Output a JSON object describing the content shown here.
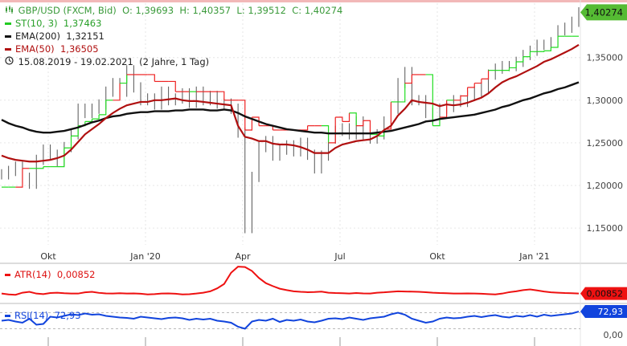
{
  "header": {
    "instrument": "GBP/USD (FXCM, Bid)",
    "ohlc": {
      "o_label": "O:",
      "o": "1,39693",
      "h_label": "H:",
      "h": "1,40357",
      "l_label": "L:",
      "l": "1,39512",
      "c_label": "C:",
      "c": "1,40274"
    },
    "range": "15.08.2019 - 19.02.2021",
    "range_note": "(2 Jahre, 1 Tag)"
  },
  "legend": [
    {
      "label": "ST(10, 3)",
      "value": "1,37463",
      "color": "#22cc22"
    },
    {
      "label": "EMA(200)",
      "value": "1,32151",
      "color": "#111111"
    },
    {
      "label": "EMA(50)",
      "value": "1,36505",
      "color": "#b01010"
    }
  ],
  "colors": {
    "price": "#555555",
    "st_up": "#22dd22",
    "st_down": "#ee2222",
    "ema200": "#111111",
    "ema50": "#b01010",
    "atr": "#ee1111",
    "rsi": "#1144dd",
    "last_badge": "#55bb33"
  },
  "icons": {
    "chart": "candlestick-icon",
    "clock": "clock-icon"
  },
  "chart_data": [
    {
      "type": "line",
      "title": "GBP/USD (FXCM, Bid)",
      "x_tick_labels": [
        "Okt",
        "Jan '20",
        "Apr",
        "Jul",
        "Okt",
        "Jan '21"
      ],
      "y_tick_labels": [
        "1,35000",
        "1,30000",
        "1,25000",
        "1,20000",
        "1,15000"
      ],
      "ylim": [
        1.135,
        1.41
      ],
      "last_value": "1,40274",
      "series": [
        {
          "name": "GBP/USD",
          "values": [
            1.213,
            1.217,
            1.222,
            1.209,
            1.202,
            1.23,
            1.242,
            1.236,
            1.228,
            1.245,
            1.26,
            1.29,
            1.285,
            1.29,
            1.295,
            1.31,
            1.32,
            1.31,
            1.335,
            1.315,
            1.3,
            1.302,
            1.295,
            1.31,
            1.3,
            1.302,
            1.308,
            1.297,
            1.31,
            1.3,
            1.305,
            1.296,
            1.296,
            1.29,
            1.262,
            1.15,
            1.21,
            1.245,
            1.252,
            1.235,
            1.242,
            1.247,
            1.24,
            1.25,
            1.236,
            1.22,
            1.235,
            1.255,
            1.264,
            1.267,
            1.26,
            1.275,
            1.26,
            1.255,
            1.26,
            1.275,
            1.29,
            1.32,
            1.333,
            1.3,
            1.3,
            1.285,
            1.278,
            1.29,
            1.292,
            1.3,
            1.298,
            1.305,
            1.31,
            1.315,
            1.33,
            1.337,
            1.34,
            1.34,
            1.345,
            1.353,
            1.358,
            1.365,
            1.365,
            1.368,
            1.382,
            1.385,
            1.392,
            1.403
          ]
        },
        {
          "name": "ST(10, 3)",
          "values": [
            1.198,
            1.198,
            1.198,
            1.22,
            1.22,
            1.22,
            1.222,
            1.222,
            1.222,
            1.244,
            1.258,
            1.27,
            1.275,
            1.278,
            1.283,
            1.3,
            1.3,
            1.32,
            1.33,
            1.33,
            1.33,
            1.33,
            1.322,
            1.322,
            1.322,
            1.31,
            1.31,
            1.31,
            1.31,
            1.31,
            1.31,
            1.31,
            1.3,
            1.3,
            1.3,
            1.265,
            1.28,
            1.27,
            1.27,
            1.265,
            1.265,
            1.265,
            1.265,
            1.265,
            1.27,
            1.27,
            1.27,
            1.25,
            1.28,
            1.275,
            1.285,
            1.27,
            1.276,
            1.26,
            1.258,
            1.266,
            1.298,
            1.298,
            1.32,
            1.33,
            1.33,
            1.33,
            1.27,
            1.28,
            1.3,
            1.3,
            1.305,
            1.315,
            1.32,
            1.325,
            1.335,
            1.335,
            1.335,
            1.338,
            1.345,
            1.351,
            1.357,
            1.357,
            1.358,
            1.362,
            1.375,
            1.375,
            1.375,
            1.375
          ]
        },
        {
          "name": "EMA(200)",
          "values": [
            1.277,
            1.273,
            1.27,
            1.268,
            1.265,
            1.263,
            1.262,
            1.262,
            1.263,
            1.264,
            1.266,
            1.268,
            1.271,
            1.274,
            1.276,
            1.279,
            1.281,
            1.282,
            1.284,
            1.285,
            1.286,
            1.286,
            1.287,
            1.287,
            1.287,
            1.288,
            1.288,
            1.289,
            1.289,
            1.289,
            1.288,
            1.288,
            1.289,
            1.288,
            1.285,
            1.281,
            1.278,
            1.275,
            1.272,
            1.27,
            1.268,
            1.266,
            1.265,
            1.264,
            1.263,
            1.262,
            1.262,
            1.261,
            1.261,
            1.261,
            1.261,
            1.261,
            1.261,
            1.261,
            1.262,
            1.263,
            1.264,
            1.266,
            1.268,
            1.27,
            1.272,
            1.275,
            1.276,
            1.278,
            1.279,
            1.28,
            1.281,
            1.282,
            1.283,
            1.285,
            1.287,
            1.289,
            1.292,
            1.294,
            1.297,
            1.3,
            1.302,
            1.305,
            1.308,
            1.31,
            1.313,
            1.315,
            1.318,
            1.321
          ]
        },
        {
          "name": "EMA(50)",
          "values": [
            1.235,
            1.232,
            1.23,
            1.229,
            1.228,
            1.228,
            1.229,
            1.23,
            1.232,
            1.235,
            1.242,
            1.251,
            1.26,
            1.266,
            1.272,
            1.279,
            1.285,
            1.29,
            1.294,
            1.296,
            1.298,
            1.298,
            1.3,
            1.3,
            1.301,
            1.302,
            1.3,
            1.299,
            1.299,
            1.298,
            1.297,
            1.296,
            1.295,
            1.294,
            1.27,
            1.257,
            1.255,
            1.252,
            1.252,
            1.249,
            1.248,
            1.248,
            1.247,
            1.245,
            1.242,
            1.238,
            1.238,
            1.238,
            1.244,
            1.248,
            1.25,
            1.252,
            1.253,
            1.254,
            1.258,
            1.265,
            1.27,
            1.282,
            1.29,
            1.3,
            1.298,
            1.297,
            1.296,
            1.293,
            1.295,
            1.294,
            1.295,
            1.297,
            1.3,
            1.303,
            1.308,
            1.315,
            1.321,
            1.325,
            1.328,
            1.332,
            1.336,
            1.34,
            1.345,
            1.348,
            1.352,
            1.356,
            1.36,
            1.365
          ]
        }
      ]
    },
    {
      "type": "line",
      "title": "ATR(14)",
      "last_value": "0,00852",
      "series": [
        {
          "name": "ATR(14)",
          "values": [
            0.0085,
            0.008,
            0.0078,
            0.009,
            0.0095,
            0.0085,
            0.0082,
            0.0088,
            0.009,
            0.0087,
            0.0085,
            0.0085,
            0.0092,
            0.0095,
            0.0089,
            0.0086,
            0.0085,
            0.0087,
            0.0085,
            0.0086,
            0.0084,
            0.008,
            0.0082,
            0.0085,
            0.0086,
            0.0084,
            0.008,
            0.0081,
            0.0085,
            0.009,
            0.0098,
            0.0115,
            0.014,
            0.0205,
            0.024,
            0.0238,
            0.0215,
            0.0175,
            0.0145,
            0.0128,
            0.0113,
            0.0105,
            0.0098,
            0.0095,
            0.0093,
            0.0094,
            0.0096,
            0.009,
            0.0088,
            0.0087,
            0.0085,
            0.0088,
            0.0086,
            0.0085,
            0.009,
            0.0092,
            0.0095,
            0.0098,
            0.0097,
            0.0096,
            0.0095,
            0.0093,
            0.009,
            0.0088,
            0.0087,
            0.0085,
            0.0085,
            0.0086,
            0.0085,
            0.0084,
            0.0082,
            0.008,
            0.0085,
            0.0093,
            0.0098,
            0.0105,
            0.0109,
            0.0103,
            0.0097,
            0.0092,
            0.009,
            0.0088,
            0.0087,
            0.00852
          ]
        }
      ]
    },
    {
      "type": "line",
      "title": "RSI(14)",
      "y_tick_labels": [
        "0,00"
      ],
      "last_value": "72,93",
      "series": [
        {
          "name": "RSI(14)",
          "values": [
            50,
            52,
            48,
            45,
            55,
            40,
            42,
            60,
            58,
            62,
            66,
            64,
            68,
            65,
            66,
            62,
            60,
            58,
            57,
            55,
            60,
            58,
            56,
            54,
            57,
            58,
            56,
            52,
            55,
            53,
            55,
            50,
            48,
            45,
            35,
            30,
            48,
            52,
            50,
            55,
            47,
            52,
            50,
            53,
            48,
            46,
            50,
            55,
            56,
            54,
            58,
            55,
            52,
            56,
            58,
            60,
            66,
            70,
            65,
            55,
            50,
            45,
            48,
            55,
            58,
            56,
            57,
            60,
            62,
            59,
            62,
            64,
            60,
            58,
            62,
            60,
            64,
            60,
            65,
            62,
            64,
            66,
            68,
            72.93
          ]
        }
      ]
    }
  ]
}
